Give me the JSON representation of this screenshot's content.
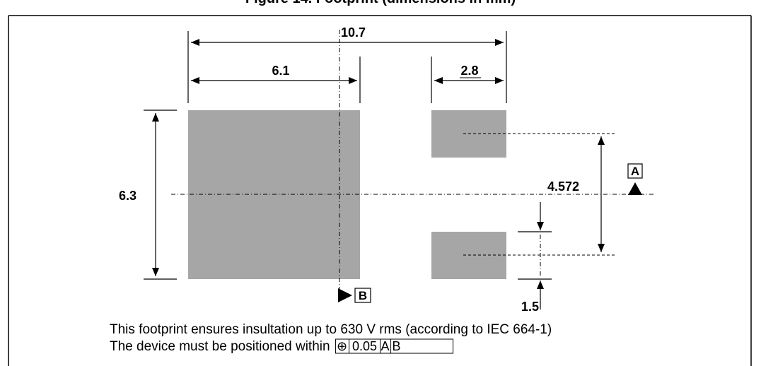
{
  "figure": {
    "title": "Figure 14. Footprint (dimensions in mm)"
  },
  "dimensions": {
    "overall_width": "10.7",
    "left_pad_width": "6.1",
    "right_pad_width": "2.8",
    "pad_height": "6.3",
    "pad_pitch": "4.572",
    "pad_gap": "1.5"
  },
  "datums": {
    "a": "A",
    "b": "B"
  },
  "notes": {
    "line1": "This footprint ensures insultation up to 630 V rms (according to IEC 664-1)",
    "line2_prefix": "The device must be positioned within"
  },
  "tolerance_frame": {
    "symbol": "⊕",
    "value": "0.05",
    "datum1": "A",
    "datum2": "B"
  },
  "colors": {
    "pad_fill": "#a6a6a6",
    "line": "#000000"
  }
}
